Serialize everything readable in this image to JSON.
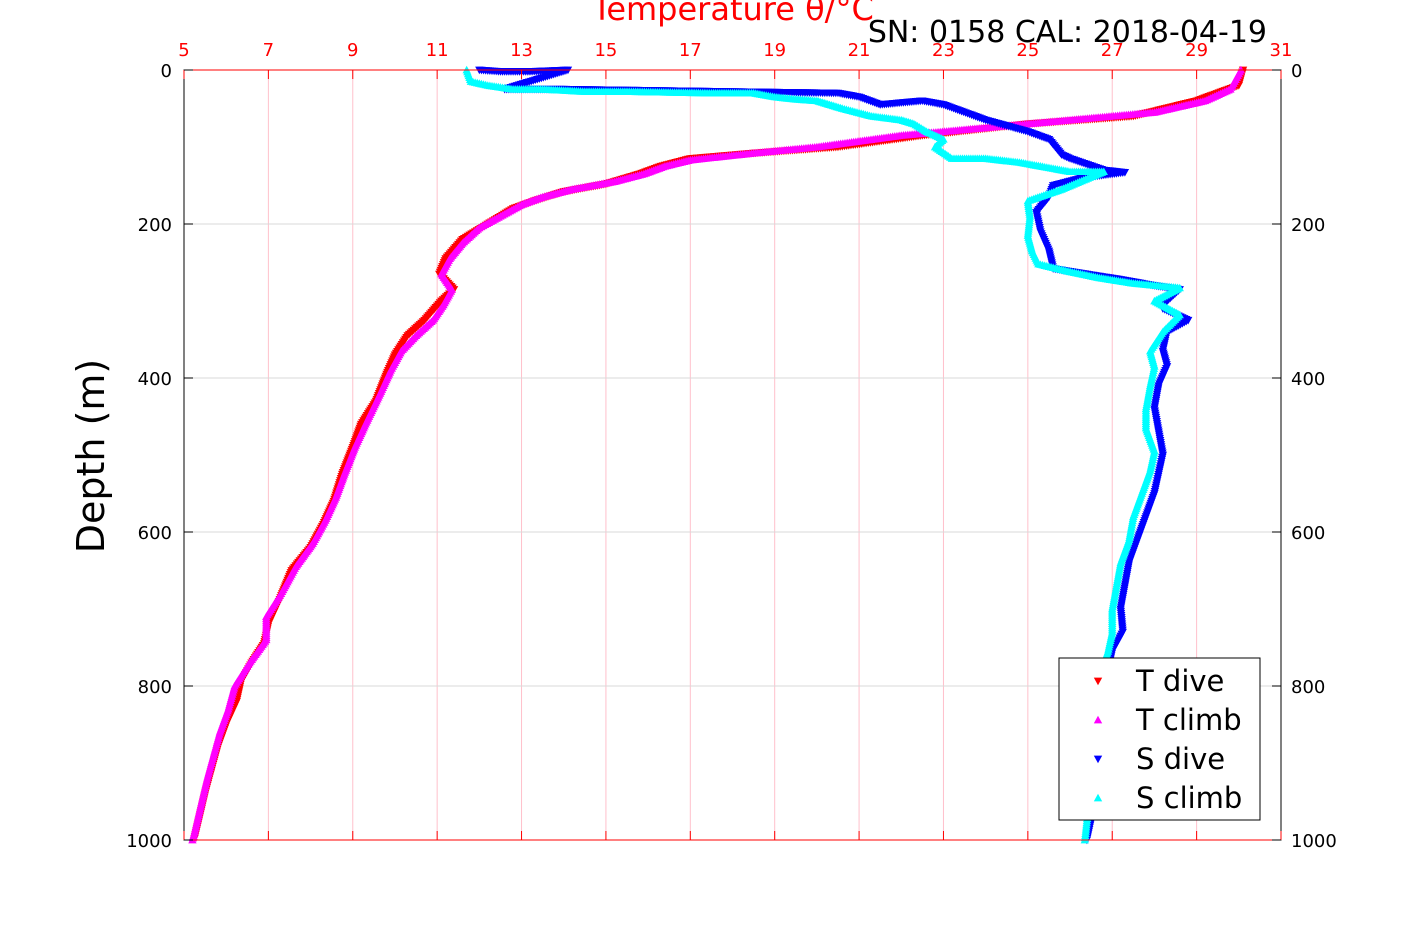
{
  "chart_data": {
    "type": "scatter",
    "title": "Temperature θ/°C",
    "subtitle": "SN: 0158  CAL: 2018-04-19",
    "xlabel": "",
    "ylabel": "Depth (m)",
    "xlim": [
      5,
      31
    ],
    "ylim": [
      0,
      1000
    ],
    "y_reversed": true,
    "x_ticks": [
      5,
      7,
      9,
      11,
      13,
      15,
      17,
      19,
      21,
      23,
      25,
      27,
      29,
      31
    ],
    "y_ticks": [
      0,
      200,
      400,
      600,
      800,
      1000
    ],
    "grid": true,
    "legend_position": "bottom-right",
    "colors": {
      "title": "#ff0000",
      "x_axis": "#ff0000",
      "grid_x": "#ffc0cb",
      "grid_y": "#d9d9d9",
      "axis": "#000000"
    },
    "series": [
      {
        "name": "T dive",
        "color": "#ff0000",
        "marker": "triangle-down",
        "points": [
          [
            30.1,
            0
          ],
          [
            30.0,
            20
          ],
          [
            29.0,
            40
          ],
          [
            27.5,
            60
          ],
          [
            25.0,
            70
          ],
          [
            22.5,
            85
          ],
          [
            20.5,
            100
          ],
          [
            18.5,
            108
          ],
          [
            17.0,
            115
          ],
          [
            16.3,
            125
          ],
          [
            15.8,
            135
          ],
          [
            15.0,
            148
          ],
          [
            14.0,
            158
          ],
          [
            13.3,
            170
          ],
          [
            12.8,
            180
          ],
          [
            12.2,
            200
          ],
          [
            11.6,
            220
          ],
          [
            11.2,
            245
          ],
          [
            11.05,
            265
          ],
          [
            11.4,
            285
          ],
          [
            11.1,
            300
          ],
          [
            10.7,
            325
          ],
          [
            10.3,
            345
          ],
          [
            10.0,
            370
          ],
          [
            9.8,
            395
          ],
          [
            9.55,
            430
          ],
          [
            9.2,
            460
          ],
          [
            9.0,
            490
          ],
          [
            8.75,
            525
          ],
          [
            8.55,
            560
          ],
          [
            8.3,
            590
          ],
          [
            8.0,
            620
          ],
          [
            7.55,
            650
          ],
          [
            7.25,
            690
          ],
          [
            7.0,
            720
          ],
          [
            6.9,
            745
          ],
          [
            6.6,
            770
          ],
          [
            6.35,
            795
          ],
          [
            6.25,
            820
          ],
          [
            6.0,
            850
          ],
          [
            5.8,
            880
          ],
          [
            5.65,
            910
          ],
          [
            5.5,
            940
          ],
          [
            5.35,
            975
          ],
          [
            5.25,
            998
          ]
        ]
      },
      {
        "name": "T climb",
        "color": "#ff00ff",
        "marker": "triangle-up",
        "points": [
          [
            30.05,
            0
          ],
          [
            29.8,
            25
          ],
          [
            29.2,
            40
          ],
          [
            28.0,
            55
          ],
          [
            26.0,
            65
          ],
          [
            24.0,
            75
          ],
          [
            22.0,
            85
          ],
          [
            20.0,
            100
          ],
          [
            18.5,
            108
          ],
          [
            17.0,
            117
          ],
          [
            16.4,
            125
          ],
          [
            15.9,
            135
          ],
          [
            15.2,
            145
          ],
          [
            14.2,
            155
          ],
          [
            13.5,
            165
          ],
          [
            13.0,
            175
          ],
          [
            12.5,
            190
          ],
          [
            12.0,
            205
          ],
          [
            11.6,
            225
          ],
          [
            11.3,
            245
          ],
          [
            11.1,
            265
          ],
          [
            11.35,
            285
          ],
          [
            11.15,
            305
          ],
          [
            10.9,
            325
          ],
          [
            10.5,
            345
          ],
          [
            10.15,
            365
          ],
          [
            9.9,
            390
          ],
          [
            9.65,
            420
          ],
          [
            9.3,
            460
          ],
          [
            9.05,
            490
          ],
          [
            8.8,
            525
          ],
          [
            8.6,
            555
          ],
          [
            8.35,
            585
          ],
          [
            8.05,
            615
          ],
          [
            7.65,
            645
          ],
          [
            7.3,
            680
          ],
          [
            6.95,
            710
          ],
          [
            6.95,
            740
          ],
          [
            6.55,
            770
          ],
          [
            6.2,
            800
          ],
          [
            6.05,
            830
          ],
          [
            5.85,
            860
          ],
          [
            5.7,
            890
          ],
          [
            5.55,
            920
          ],
          [
            5.4,
            955
          ],
          [
            5.25,
            990
          ],
          [
            5.2,
            1000
          ]
        ]
      },
      {
        "name": "S dive",
        "color": "#0000ff",
        "marker": "triangle-down",
        "points": [
          [
            12.0,
            0
          ],
          [
            12.5,
            2
          ],
          [
            13.2,
            2
          ],
          [
            14.1,
            0
          ],
          [
            12.6,
            25
          ],
          [
            13.5,
            25
          ],
          [
            14.0,
            25
          ],
          [
            20.5,
            30
          ],
          [
            21.0,
            35
          ],
          [
            21.5,
            45
          ],
          [
            22.5,
            40
          ],
          [
            23.0,
            45
          ],
          [
            24.0,
            65
          ],
          [
            25.0,
            80
          ],
          [
            25.5,
            90
          ],
          [
            25.8,
            110
          ],
          [
            26.0,
            115
          ],
          [
            26.8,
            130
          ],
          [
            27.3,
            133
          ],
          [
            26.3,
            140
          ],
          [
            25.6,
            150
          ],
          [
            25.5,
            165
          ],
          [
            25.2,
            185
          ],
          [
            25.3,
            210
          ],
          [
            25.5,
            235
          ],
          [
            25.6,
            258
          ],
          [
            26.5,
            266
          ],
          [
            27.2,
            272
          ],
          [
            28.0,
            280
          ],
          [
            28.6,
            285
          ],
          [
            28.3,
            300
          ],
          [
            28.2,
            310
          ],
          [
            28.8,
            325
          ],
          [
            28.3,
            340
          ],
          [
            28.2,
            365
          ],
          [
            28.3,
            385
          ],
          [
            28.1,
            410
          ],
          [
            28.0,
            440
          ],
          [
            28.1,
            470
          ],
          [
            28.2,
            500
          ],
          [
            28.1,
            525
          ],
          [
            28.0,
            550
          ],
          [
            27.8,
            580
          ],
          [
            27.6,
            610
          ],
          [
            27.4,
            640
          ],
          [
            27.3,
            670
          ],
          [
            27.2,
            700
          ],
          [
            27.25,
            730
          ],
          [
            27.0,
            755
          ],
          [
            26.9,
            780
          ],
          [
            26.8,
            830
          ],
          [
            26.7,
            880
          ],
          [
            26.6,
            930
          ],
          [
            26.5,
            975
          ],
          [
            26.4,
            1000
          ]
        ]
      },
      {
        "name": "S climb",
        "color": "#00ffff",
        "marker": "triangle-up",
        "points": [
          [
            11.7,
            0
          ],
          [
            11.8,
            15
          ],
          [
            12.2,
            20
          ],
          [
            12.8,
            25
          ],
          [
            13.5,
            25
          ],
          [
            14.5,
            28
          ],
          [
            15.0,
            28
          ],
          [
            15.5,
            28
          ],
          [
            17.5,
            30
          ],
          [
            18.0,
            30
          ],
          [
            18.5,
            30
          ],
          [
            19.0,
            35
          ],
          [
            19.5,
            38
          ],
          [
            20.0,
            40
          ],
          [
            20.3,
            45
          ],
          [
            20.6,
            50
          ],
          [
            21.3,
            60
          ],
          [
            22.0,
            65
          ],
          [
            22.3,
            70
          ],
          [
            22.6,
            80
          ],
          [
            23.0,
            90
          ],
          [
            22.8,
            100
          ],
          [
            23.2,
            115
          ],
          [
            24.0,
            115
          ],
          [
            24.8,
            120
          ],
          [
            25.3,
            125
          ],
          [
            26.0,
            132
          ],
          [
            26.8,
            132
          ],
          [
            25.8,
            155
          ],
          [
            25.0,
            170
          ],
          [
            25.05,
            190
          ],
          [
            25.0,
            215
          ],
          [
            25.1,
            235
          ],
          [
            25.25,
            252
          ],
          [
            26.0,
            262
          ],
          [
            26.7,
            270
          ],
          [
            27.5,
            277
          ],
          [
            28.6,
            283
          ],
          [
            28.0,
            300
          ],
          [
            28.6,
            318
          ],
          [
            28.2,
            340
          ],
          [
            27.9,
            365
          ],
          [
            28.0,
            385
          ],
          [
            27.9,
            410
          ],
          [
            27.8,
            440
          ],
          [
            27.8,
            465
          ],
          [
            28.0,
            495
          ],
          [
            27.9,
            520
          ],
          [
            27.7,
            550
          ],
          [
            27.5,
            580
          ],
          [
            27.4,
            610
          ],
          [
            27.2,
            640
          ],
          [
            27.1,
            670
          ],
          [
            27.0,
            700
          ],
          [
            27.0,
            730
          ],
          [
            26.9,
            755
          ],
          [
            26.7,
            785
          ],
          [
            26.6,
            830
          ],
          [
            26.6,
            880
          ],
          [
            26.5,
            930
          ],
          [
            26.4,
            975
          ],
          [
            26.35,
            1000
          ]
        ]
      }
    ]
  }
}
